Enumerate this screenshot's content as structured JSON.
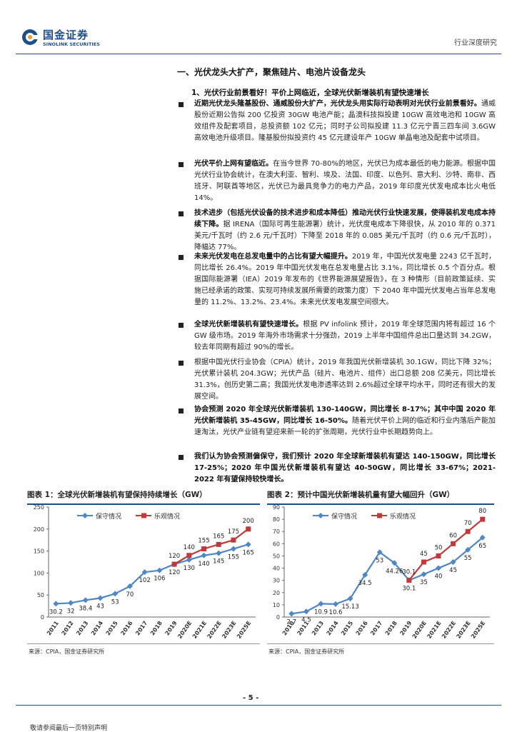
{
  "header": {
    "brand_cn": "国金证券",
    "brand_en": "SINOLINK SECURITIES",
    "report_type": "行业深度研究",
    "brand_color": "#1f4f8b"
  },
  "section_title": "一、光伏龙头大扩产，聚焦硅片、电池片设备龙头",
  "subsection_title": "1、光伏行业前景看好！平价上网临近，全球光伏新增装机有望快速增长",
  "paragraphs": [
    {
      "bold": "近期光伏龙头隆基股份、通威股份大扩产，光伏龙头用实际行动表明对光伏行业前景看好。",
      "text": "通威股份近期公告拟 200 亿投资 30GW 电池产能；晶澳科技拟投建 10GW 高效电池和 10GW 高效组件及配套项目，总投资额 102 亿元；同时子公司拟投建 11.3 亿元宁晋三四车间 3.6GW 高效电池升级项目。隆基股份拟投资约 45 亿元建设年产 10GW 单晶电池及配套中试项目。"
    },
    {
      "bold": "光伏平价上网有望临近。",
      "text": "在当今世界 70-80%的地区，光伏已为成本最低的电力能源。根据中国光伏行业协会统计，在澳大利亚、智利、埃及、法国、印度、以色列、意大利、沙特、南非、西班牙、阿联酋等地区，光伏已为最具竞争力的电力产品，2019 年印度光伏发电成本比火电低 14%。"
    },
    {
      "bold": "技术进步（包括光伏设备的技术进步和成本降低）推动光伏行业快速发展，使得装机发电成本持续下降。",
      "text": "据 IRENA（国际可再生能源署）统计，光伏度电成本下降很快，从 2010 年的 0.371 美元/千瓦时（约 2.6 元/千瓦时）下降至 2018 年的 0.085 美元/千瓦时（约 0.6 元/千瓦时），降幅达 77%。"
    },
    {
      "bold": "未来光伏发电在总发电量中的占比有望大幅提升。",
      "text": "2019 年，中国光伏发电量 2243 亿千瓦时，同比增长 26.4%。2019 年中国光伏发电在总发电量占比 3.1%，同比增长 0.5 个百分点。根据国际能源署（IEA）2019 年发布的《世界能源展望报告》，在 3 种情形（目前政策延续、实施已经承诺的政策、实现可持续发展所需要的政策力度）下 2040 年中国光伏发电占当年总发电量的 11.2%、13.2%、23.4%。未来光伏发电发展空间很大。"
    },
    {
      "bold": "全球光伏新增装机有望快速增长。",
      "text": "根据 PV infolink 预计，2019 年全球范围内将有超过 16 个 GW 级市场。2019 年海外市场需求十分强劲，2019 上半年中国组件总出口量达到 34.2GW，较去年同期有超过 90%的增长。"
    },
    {
      "bold": "",
      "text": "根据中国光伏行业协会（CPIA）统计，2019 年我国光伏新增装机 30.1GW，同比下降 32%；光伏累计装机 204.3GW；光伏产品（硅片、电池片、组件）出口总额 208 亿美元，同比增长 31.3%，创历史第二高；我国光伏发电渗透率达到 2.6%超过全球平均水平，同时还有很大的发展空间。"
    },
    {
      "bold": "协会预测 2020 年全球光伏新增装机 130-140GW，同比增长 8-17%；其中中国 2020 年光伏新增装机 35-45GW，同比增长 16-50%。",
      "text": "随着光伏平价上网的临近和行业内落后产能加速淘汰，光伏产业链有望迎来新一轮的扩张周期，光伏行业中长期趋势向上。"
    },
    {
      "bold": "我们认为协会预测偏保守，我们预计 2020 年全球新增装机有望达 140-150GW，同比增长 17-25%；2020 年中国光伏新增装机有望达 40-50GW，同比增长 33-67%；2021-2022 年有望保持较快增长。",
      "text": ""
    }
  ],
  "figure1": {
    "title": "图表 1：全球光伏新增装机有望保持持续增长（GW）",
    "source": "来源：CPIA，国金证券研究所",
    "chart_data": {
      "type": "line",
      "categories": [
        "2011",
        "2012",
        "2013",
        "2014",
        "2015",
        "2016",
        "2017",
        "2018",
        "2019",
        "2020E",
        "2021E",
        "2022E",
        "2023E",
        "2025E"
      ],
      "ylim": [
        0,
        250
      ],
      "yticks": [
        "0",
        "50",
        "100",
        "150",
        "200",
        "250"
      ],
      "series": [
        {
          "name": "保守情况",
          "color": "#4f86c6",
          "values": [
            30.2,
            32,
            38.4,
            43,
            53,
            70,
            102,
            106,
            120,
            130,
            140,
            145,
            155,
            165
          ],
          "labels": [
            "30.2",
            "32",
            "38.4",
            "43",
            "53",
            "70",
            "102",
            "106",
            "120",
            "130",
            "140",
            "145",
            "155",
            "165"
          ]
        },
        {
          "name": "乐观情况",
          "color": "#c0393b",
          "values": [
            null,
            null,
            null,
            null,
            null,
            null,
            null,
            null,
            120,
            140,
            155,
            165,
            175,
            200
          ],
          "labels": [
            "",
            "",
            "",
            "",
            "",
            "",
            "",
            "",
            "120",
            "140",
            "155",
            "165",
            "175",
            "200"
          ]
        }
      ]
    }
  },
  "figure2": {
    "title": "图表 2：预计中国光伏新增装机量有望大幅回升（GW）",
    "source": "来源：CPIA，国金证券研究所",
    "chart_data": {
      "type": "line",
      "categories": [
        "2010",
        "2011",
        "2013",
        "2014",
        "2015",
        "2016",
        "2017",
        "2018",
        "2019",
        "2020E",
        "2021E",
        "2022E",
        "2023E",
        "2025E"
      ],
      "ylim": [
        0,
        90
      ],
      "yticks": [
        "0",
        "10",
        "20",
        "30",
        "40",
        "50",
        "60",
        "70",
        "80",
        "90"
      ],
      "series": [
        {
          "name": "保守情况",
          "color": "#4f86c6",
          "values": [
            2.7,
            4.5,
            10.9,
            10.6,
            15.13,
            34.5,
            53,
            44.26,
            30.1,
            35,
            40,
            45,
            55,
            65
          ],
          "labels": [
            "2.7",
            "4.5",
            "10.9",
            "10.6",
            "15.13",
            "34.5",
            "53",
            "44.26",
            "30.1",
            "35",
            "40",
            "45",
            "55",
            "65"
          ]
        },
        {
          "name": "乐观情况",
          "color": "#c0393b",
          "values": [
            null,
            null,
            null,
            null,
            null,
            null,
            null,
            null,
            30.1,
            45,
            50,
            60,
            70,
            80
          ],
          "labels": [
            "",
            "",
            "",
            "",
            "",
            "",
            "",
            "",
            "30.1",
            "45",
            "50",
            "60",
            "70",
            "80"
          ]
        }
      ]
    }
  },
  "page_number": "- 5 -",
  "footer_text": "敬请参阅最后一页特别声明"
}
